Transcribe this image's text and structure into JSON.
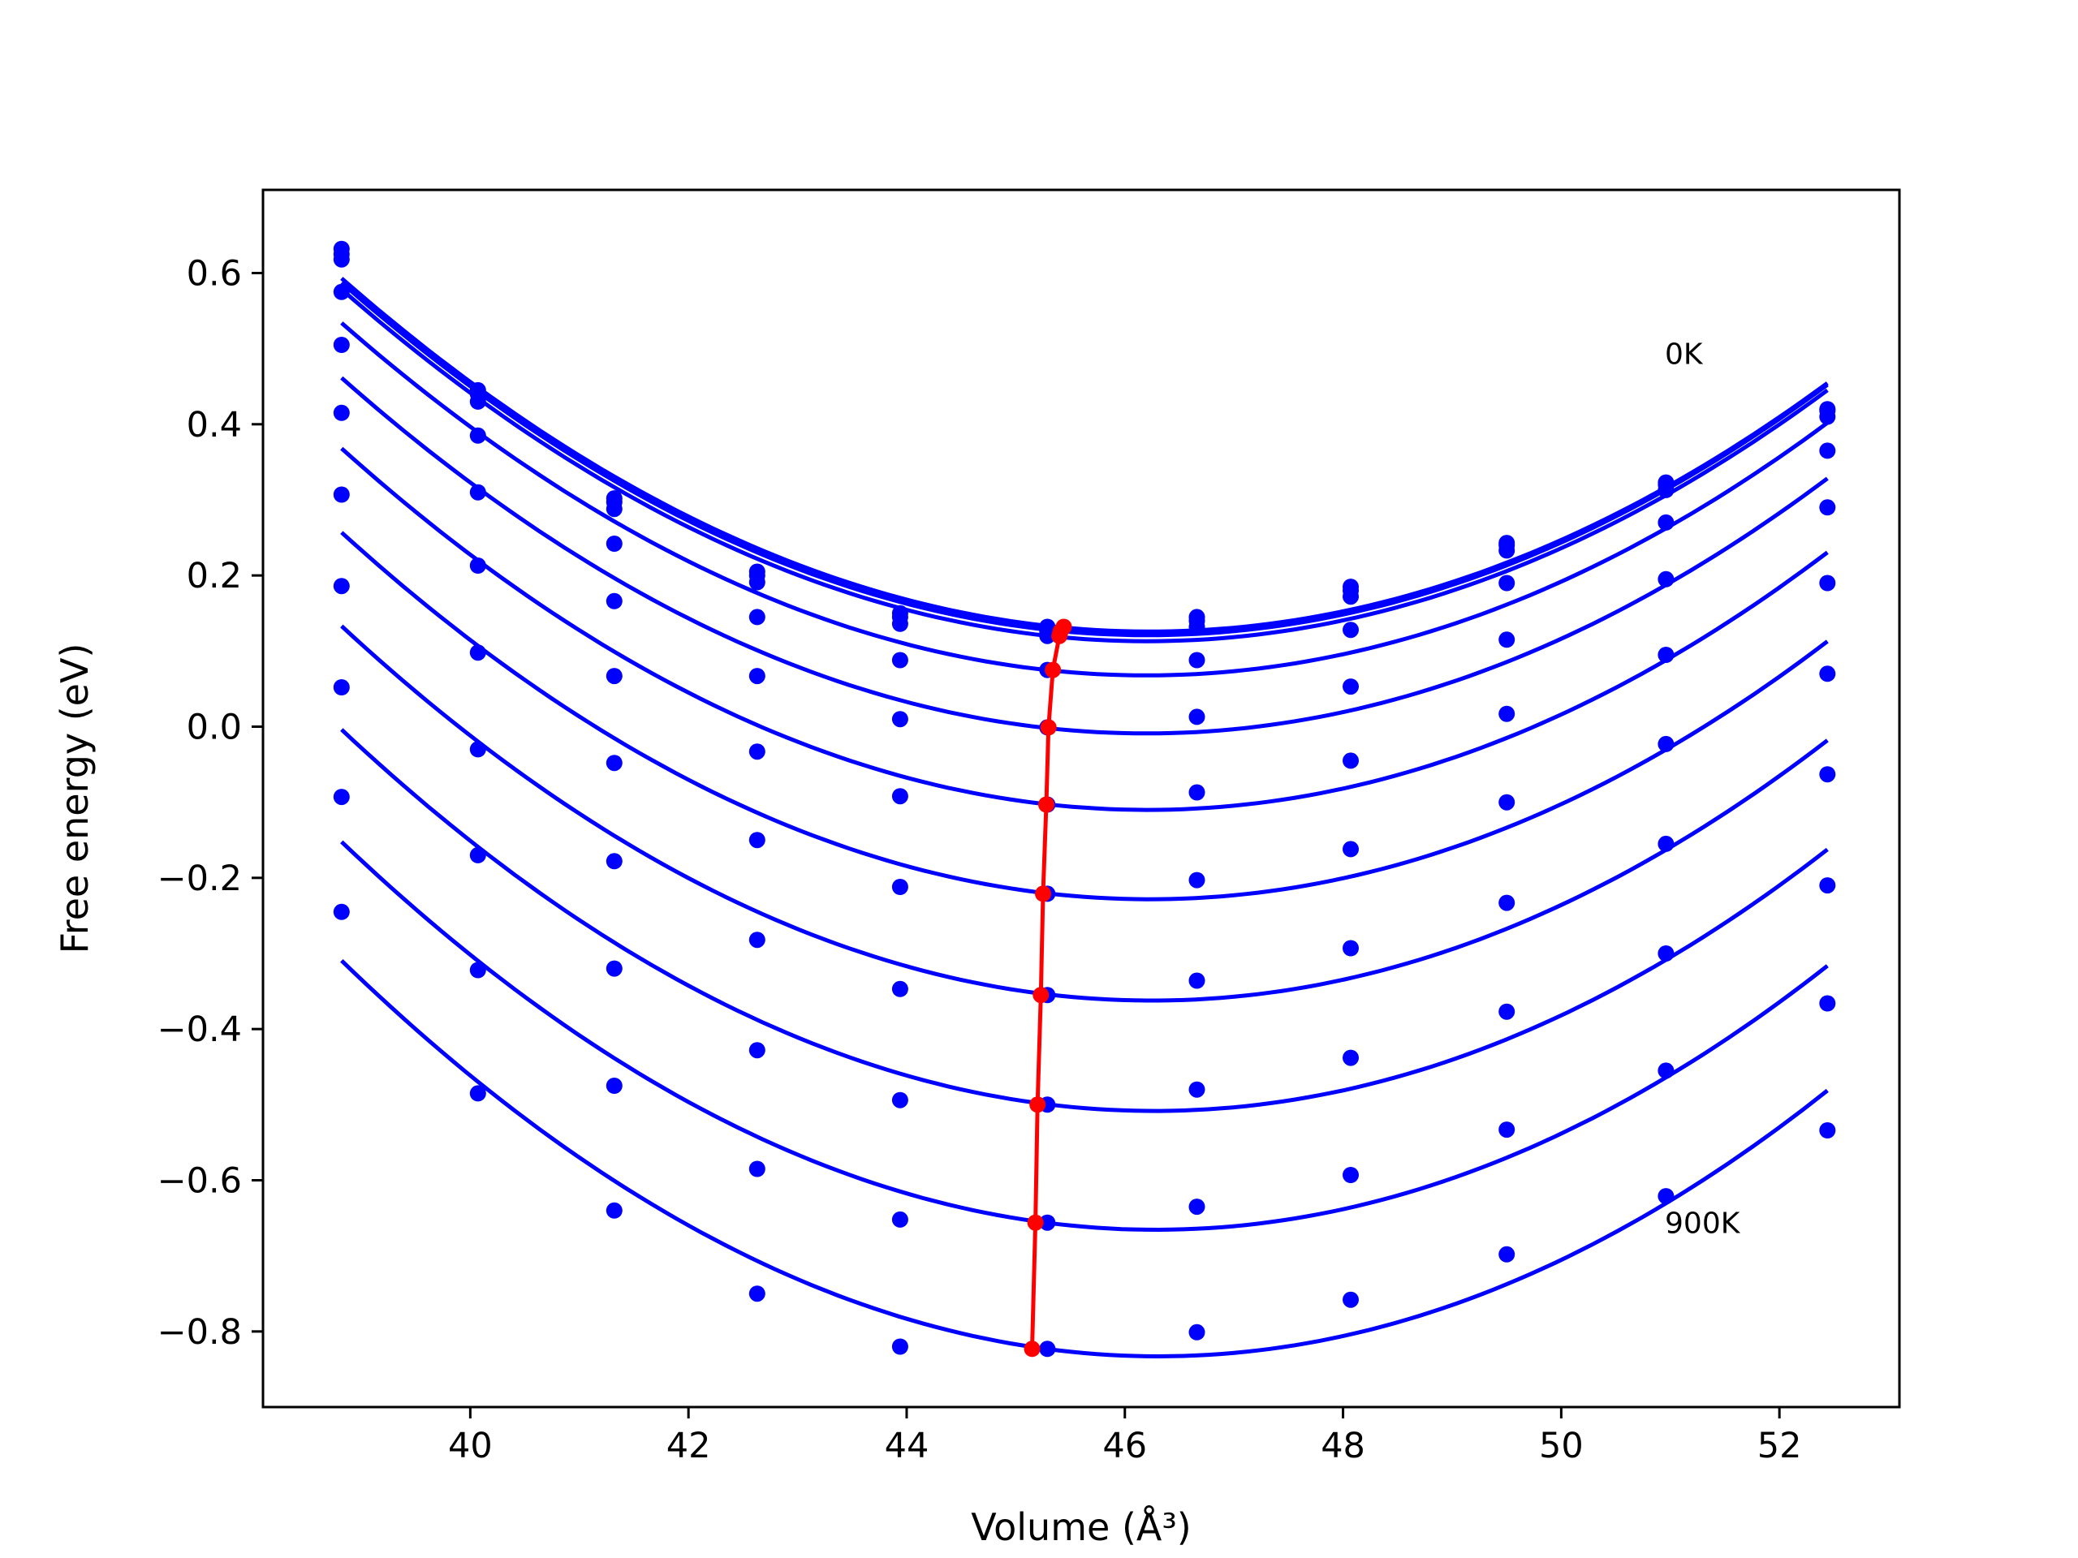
{
  "chart_data": {
    "type": "line",
    "xlabel": "Volume (Å³)",
    "ylabel": "Free energy (eV)",
    "xlim": [
      38.1,
      53.1
    ],
    "ylim": [
      -0.9,
      0.71
    ],
    "xticks": [
      40,
      42,
      44,
      46,
      48,
      50,
      52
    ],
    "xtick_labels": [
      "40",
      "42",
      "44",
      "46",
      "48",
      "50",
      "52"
    ],
    "yticks": [
      -0.8,
      -0.6,
      -0.4,
      -0.2,
      0.0,
      0.2,
      0.4,
      0.6
    ],
    "ytick_labels": [
      "−0.8",
      "−0.6",
      "−0.4",
      "−0.2",
      "0.0",
      "0.2",
      "0.4",
      "0.6"
    ],
    "grid": false,
    "x": [
      38.82,
      40.07,
      41.32,
      42.63,
      43.94,
      45.29,
      46.66,
      48.07,
      49.5,
      50.96,
      52.44
    ],
    "series": [
      {
        "values": [
          0.632,
          0.445,
          0.302,
          0.205,
          0.15,
          0.132,
          0.145,
          0.185,
          0.243,
          0.323,
          0.42
        ]
      },
      {
        "values": [
          0.625,
          0.44,
          0.297,
          0.2,
          0.145,
          0.126,
          0.14,
          0.18,
          0.24,
          0.32,
          0.418
        ]
      },
      {
        "values": [
          0.618,
          0.43,
          0.288,
          0.191,
          0.136,
          0.12,
          0.132,
          0.172,
          0.233,
          0.313,
          0.41
        ]
      },
      {
        "values": [
          0.575,
          0.385,
          0.242,
          0.145,
          0.088,
          0.075,
          0.088,
          0.128,
          0.19,
          0.27,
          0.365
        ]
      },
      {
        "values": [
          0.505,
          0.31,
          0.166,
          0.067,
          0.01,
          -0.001,
          0.013,
          0.053,
          0.115,
          0.195,
          0.29
        ]
      },
      {
        "values": [
          0.415,
          0.213,
          0.067,
          -0.033,
          -0.092,
          -0.103,
          -0.087,
          -0.045,
          0.017,
          0.095,
          0.19
        ]
      },
      {
        "values": [
          0.307,
          0.098,
          -0.048,
          -0.15,
          -0.212,
          -0.221,
          -0.203,
          -0.162,
          -0.1,
          -0.023,
          0.07
        ]
      },
      {
        "values": [
          0.186,
          -0.03,
          -0.178,
          -0.282,
          -0.347,
          -0.355,
          -0.336,
          -0.293,
          -0.233,
          -0.155,
          -0.063
        ]
      },
      {
        "values": [
          0.052,
          -0.17,
          -0.32,
          -0.428,
          -0.494,
          -0.5,
          -0.48,
          -0.438,
          -0.377,
          -0.3,
          -0.21
        ]
      },
      {
        "values": [
          -0.093,
          -0.322,
          -0.475,
          -0.585,
          -0.652,
          -0.656,
          -0.635,
          -0.593,
          -0.533,
          -0.455,
          -0.366
        ]
      },
      {
        "values": [
          -0.245,
          -0.485,
          -0.64,
          -0.75,
          -0.82,
          -0.823,
          -0.801,
          -0.758,
          -0.698,
          -0.621,
          -0.534
        ]
      }
    ],
    "minima": [
      {
        "x": 45.44,
        "y": 0.132
      },
      {
        "x": 45.41,
        "y": 0.126
      },
      {
        "x": 45.4,
        "y": 0.12
      },
      {
        "x": 45.34,
        "y": 0.075
      },
      {
        "x": 45.3,
        "y": -0.001
      },
      {
        "x": 45.28,
        "y": -0.103
      },
      {
        "x": 45.25,
        "y": -0.221
      },
      {
        "x": 45.23,
        "y": -0.355
      },
      {
        "x": 45.2,
        "y": -0.5
      },
      {
        "x": 45.18,
        "y": -0.656
      },
      {
        "x": 45.15,
        "y": -0.823
      }
    ],
    "colors": {
      "curves": "#0000ff",
      "minima": "#ff0000"
    },
    "annotations": [
      {
        "text": "0K",
        "x": 50.95,
        "y": 0.48
      },
      {
        "text": "900K",
        "x": 50.95,
        "y": -0.67
      }
    ]
  }
}
